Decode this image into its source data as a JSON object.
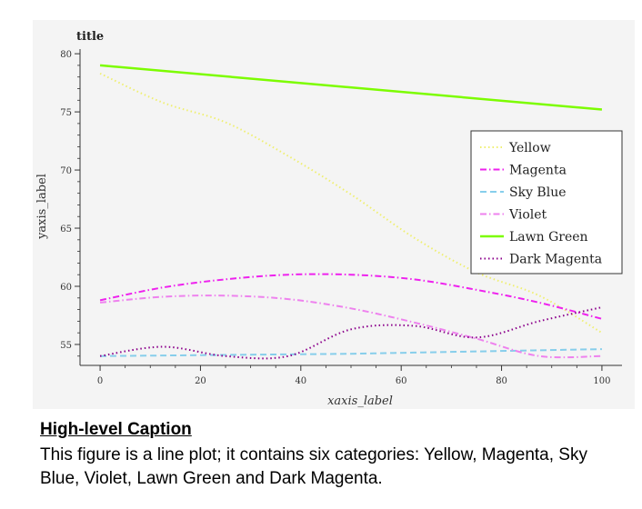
{
  "chart_data": {
    "type": "line",
    "title": "title",
    "xlabel": "xaxis_label",
    "ylabel": "yaxis_label",
    "xlim": [
      -4,
      104
    ],
    "ylim": [
      53.2,
      80.4
    ],
    "xticks": [
      0,
      20,
      40,
      60,
      80,
      100
    ],
    "yticks": [
      55,
      60,
      65,
      70,
      75,
      80
    ],
    "grid": false,
    "legend_position": "right",
    "series": [
      {
        "name": "Yellow",
        "color": "#efef70",
        "dash": "dotted",
        "x": [
          0,
          12.5,
          25,
          37.5,
          50,
          62.5,
          75,
          87.5,
          100
        ],
        "y": [
          78.3,
          75.8,
          74.1,
          71.2,
          67.9,
          64.2,
          61.2,
          59.2,
          56.0
        ]
      },
      {
        "name": "Magenta",
        "color": "#ee22ee",
        "dash": "dashdot",
        "x": [
          0,
          12.5,
          25,
          37.5,
          50,
          62.5,
          75,
          87.5,
          100
        ],
        "y": [
          58.8,
          59.9,
          60.6,
          61.0,
          61.0,
          60.6,
          59.7,
          58.6,
          57.2
        ]
      },
      {
        "name": "Sky Blue",
        "color": "#87ceeb",
        "dash": "dashed",
        "x": [
          0,
          12.5,
          25,
          37.5,
          50,
          62.5,
          75,
          87.5,
          100
        ],
        "y": [
          54.0,
          54.05,
          54.1,
          54.15,
          54.2,
          54.3,
          54.4,
          54.5,
          54.6
        ]
      },
      {
        "name": "Violet",
        "color": "#ee82ee",
        "dash": "dashdot",
        "x": [
          0,
          12.5,
          25,
          37.5,
          50,
          62.5,
          75,
          87.5,
          100
        ],
        "y": [
          58.6,
          59.1,
          59.2,
          58.9,
          58.1,
          56.9,
          55.5,
          54.0,
          54.0
        ]
      },
      {
        "name": "Lawn Green",
        "color": "#7cfc00",
        "dash": "solid",
        "x": [
          0,
          100
        ],
        "y": [
          79.0,
          75.2
        ]
      },
      {
        "name": "Dark Magenta",
        "color": "#8b008b",
        "dash": "dotted",
        "x": [
          0,
          12.5,
          25,
          37.5,
          50,
          62.5,
          75,
          87.5,
          100
        ],
        "y": [
          54.0,
          54.8,
          54.0,
          54.0,
          56.3,
          56.6,
          55.6,
          57.0,
          58.2
        ]
      }
    ]
  },
  "caption": {
    "heading": "High-level Caption",
    "text": "This figure is a line plot; it contains six categories: Yellow, Magenta, Sky Blue, Violet, Lawn Green and Dark Magenta."
  }
}
